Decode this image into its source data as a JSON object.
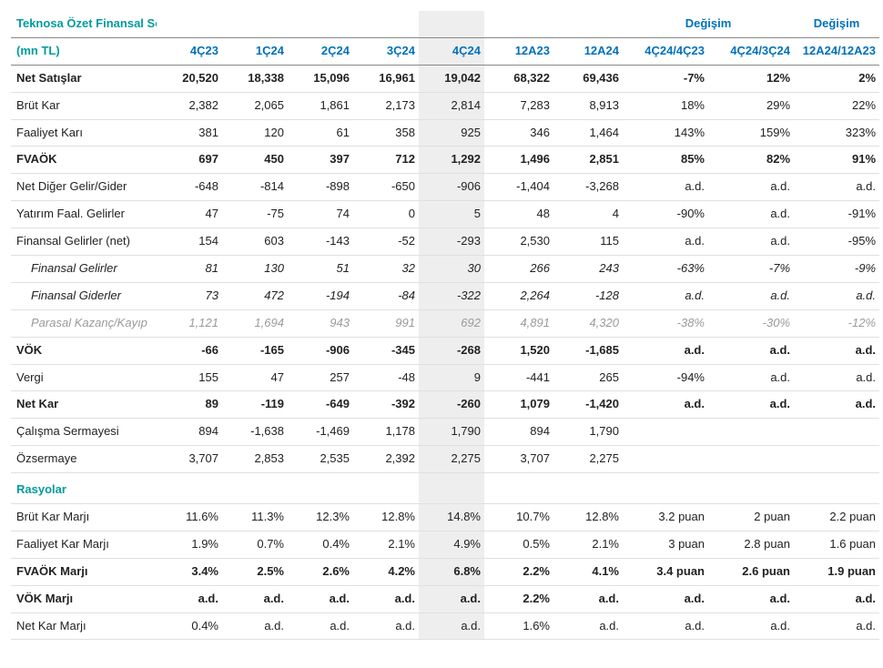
{
  "colors": {
    "header_text": "#0071bc",
    "title_text": "#009b9e",
    "body_text": "#222222",
    "muted_text": "#9a9a9a",
    "row_border": "#e0e0e0",
    "header_border": "#888888",
    "highlight_bg": "#eeeeee",
    "background": "#ffffff"
  },
  "font": {
    "family": "Segoe UI / Arial",
    "size_pt": 10
  },
  "header": {
    "title": "Teknosa Özet Finansal Sonuçlar",
    "unit": "(mn TL)",
    "change_label": "Değişim",
    "columns": [
      "4Ç23",
      "1Ç24",
      "2Ç24",
      "3Ç24",
      "4Ç24",
      "12A23",
      "12A24",
      "4Ç24/4Ç23",
      "4Ç24/3Ç24",
      "12A24/12A23"
    ],
    "highlight_col_index": 4
  },
  "rows": [
    {
      "label": "Net Satışlar",
      "style": "bold",
      "cells": [
        "20,520",
        "18,338",
        "15,096",
        "16,961",
        "19,042",
        "68,322",
        "69,436",
        "-7%",
        "12%",
        "2%"
      ]
    },
    {
      "label": "Brüt Kar",
      "cells": [
        "2,382",
        "2,065",
        "1,861",
        "2,173",
        "2,814",
        "7,283",
        "8,913",
        "18%",
        "29%",
        "22%"
      ]
    },
    {
      "label": "Faaliyet Karı",
      "cells": [
        "381",
        "120",
        "61",
        "358",
        "925",
        "346",
        "1,464",
        "143%",
        "159%",
        "323%"
      ]
    },
    {
      "label": "FVAÖK",
      "style": "bold",
      "cells": [
        "697",
        "450",
        "397",
        "712",
        "1,292",
        "1,496",
        "2,851",
        "85%",
        "82%",
        "91%"
      ]
    },
    {
      "label": "Net Diğer Gelir/Gider",
      "cells": [
        "-648",
        "-814",
        "-898",
        "-650",
        "-906",
        "-1,404",
        "-3,268",
        "a.d.",
        "a.d.",
        "a.d."
      ]
    },
    {
      "label": "Yatırım Faal. Gelirler",
      "cells": [
        "47",
        "-75",
        "74",
        "0",
        "5",
        "48",
        "4",
        "-90%",
        "a.d.",
        "-91%"
      ]
    },
    {
      "label": "Finansal Gelirler (net)",
      "cells": [
        "154",
        "603",
        "-143",
        "-52",
        "-293",
        "2,530",
        "115",
        "a.d.",
        "a.d.",
        "-95%"
      ]
    },
    {
      "label": "Finansal Gelirler",
      "style": "italic",
      "indent": true,
      "cells": [
        "81",
        "130",
        "51",
        "32",
        "30",
        "266",
        "243",
        "-63%",
        "-7%",
        "-9%"
      ]
    },
    {
      "label": "Finansal Giderler",
      "style": "italic",
      "indent": true,
      "cells": [
        "73",
        "472",
        "-194",
        "-84",
        "-322",
        "2,264",
        "-128",
        "a.d.",
        "a.d.",
        "a.d."
      ]
    },
    {
      "label": "Parasal Kazanç/Kayıp",
      "style": "muted",
      "indent": true,
      "cells": [
        "1,121",
        "1,694",
        "943",
        "991",
        "692",
        "4,891",
        "4,320",
        "-38%",
        "-30%",
        "-12%"
      ]
    },
    {
      "label": "VÖK",
      "style": "bold",
      "cells": [
        "-66",
        "-165",
        "-906",
        "-345",
        "-268",
        "1,520",
        "-1,685",
        "a.d.",
        "a.d.",
        "a.d."
      ]
    },
    {
      "label": "Vergi",
      "cells": [
        "155",
        "47",
        "257",
        "-48",
        "9",
        "-441",
        "265",
        "-94%",
        "a.d.",
        "a.d."
      ]
    },
    {
      "label": "Net Kar",
      "style": "bold",
      "cells": [
        "89",
        "-119",
        "-649",
        "-392",
        "-260",
        "1,079",
        "-1,420",
        "a.d.",
        "a.d.",
        "a.d."
      ]
    },
    {
      "label": "Çalışma Sermayesi",
      "cells": [
        "894",
        "-1,638",
        "-1,469",
        "1,178",
        "1,790",
        "894",
        "1,790",
        "",
        "",
        ""
      ]
    },
    {
      "label": "Özsermaye",
      "cells": [
        "3,707",
        "2,853",
        "2,535",
        "2,392",
        "2,275",
        "3,707",
        "2,275",
        "",
        "",
        ""
      ]
    }
  ],
  "ratios_header": "Rasyolar",
  "ratios": [
    {
      "label": "Brüt Kar Marjı",
      "cells": [
        "11.6%",
        "11.3%",
        "12.3%",
        "12.8%",
        "14.8%",
        "10.7%",
        "12.8%",
        "3.2 puan",
        "2 puan",
        "2.2 puan"
      ]
    },
    {
      "label": "Faaliyet Kar Marjı",
      "cells": [
        "1.9%",
        "0.7%",
        "0.4%",
        "2.1%",
        "4.9%",
        "0.5%",
        "2.1%",
        "3 puan",
        "2.8 puan",
        "1.6 puan"
      ]
    },
    {
      "label": "FVAÖK Marjı",
      "style": "bold",
      "cells": [
        "3.4%",
        "2.5%",
        "2.6%",
        "4.2%",
        "6.8%",
        "2.2%",
        "4.1%",
        "3.4 puan",
        "2.6 puan",
        "1.9 puan"
      ]
    },
    {
      "label": "VÖK Marjı",
      "style": "bold",
      "cells": [
        "a.d.",
        "a.d.",
        "a.d.",
        "a.d.",
        "a.d.",
        "2.2%",
        "a.d.",
        "a.d.",
        "a.d.",
        "a.d."
      ]
    },
    {
      "label": "Net Kar Marjı",
      "cells": [
        "0.4%",
        "a.d.",
        "a.d.",
        "a.d.",
        "a.d.",
        "1.6%",
        "a.d.",
        "a.d.",
        "a.d.",
        "a.d."
      ]
    }
  ]
}
